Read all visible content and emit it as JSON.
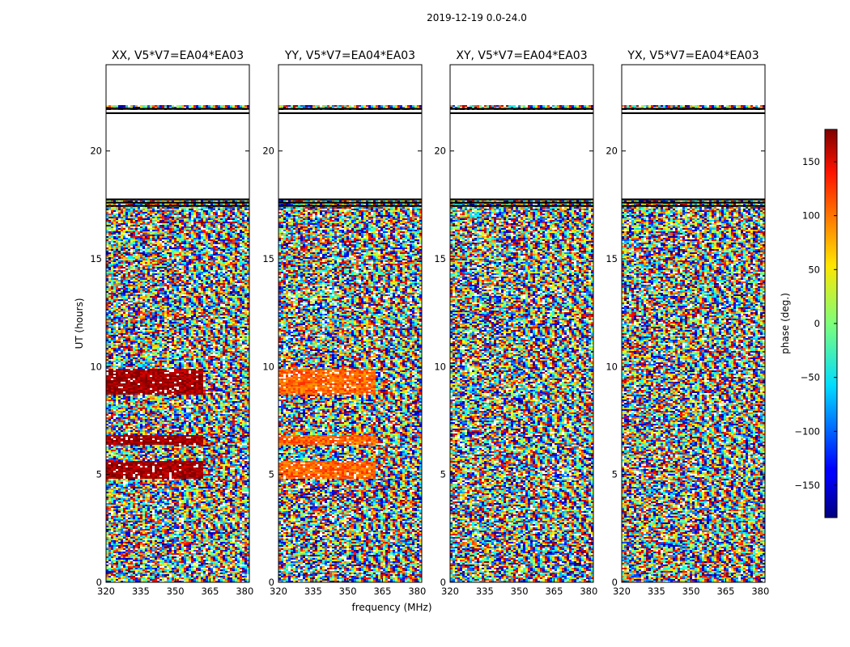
{
  "chart_data": {
    "type": "heatmap",
    "suptitle": "2019-12-19 0.0-24.0",
    "xlabel": "frequency (MHz)",
    "ylabel": "UT (hours)",
    "xlim": [
      320,
      382
    ],
    "ylim": [
      0,
      24
    ],
    "xticks": [
      320,
      335,
      350,
      365,
      380
    ],
    "yticks": [
      0,
      5,
      10,
      15,
      20
    ],
    "panels": [
      {
        "title": "XX, V5*V7=EA04*EA03",
        "pol": "XX"
      },
      {
        "title": "YY, V5*V7=EA04*EA03",
        "pol": "YY"
      },
      {
        "title": "XY, V5*V7=EA04*EA03",
        "pol": "XY"
      },
      {
        "title": "YX, V5*V7=EA04*EA03",
        "pol": "YX"
      }
    ],
    "colorbar": {
      "label": "phase (deg.)",
      "range": [
        -180,
        180
      ],
      "ticks": [
        150,
        100,
        50,
        0,
        -50,
        -100,
        -150
      ],
      "colormap": "jet"
    },
    "data_gaps_ut": [
      [
        17.8,
        21.9
      ],
      [
        22.1,
        24.0
      ]
    ]
  }
}
